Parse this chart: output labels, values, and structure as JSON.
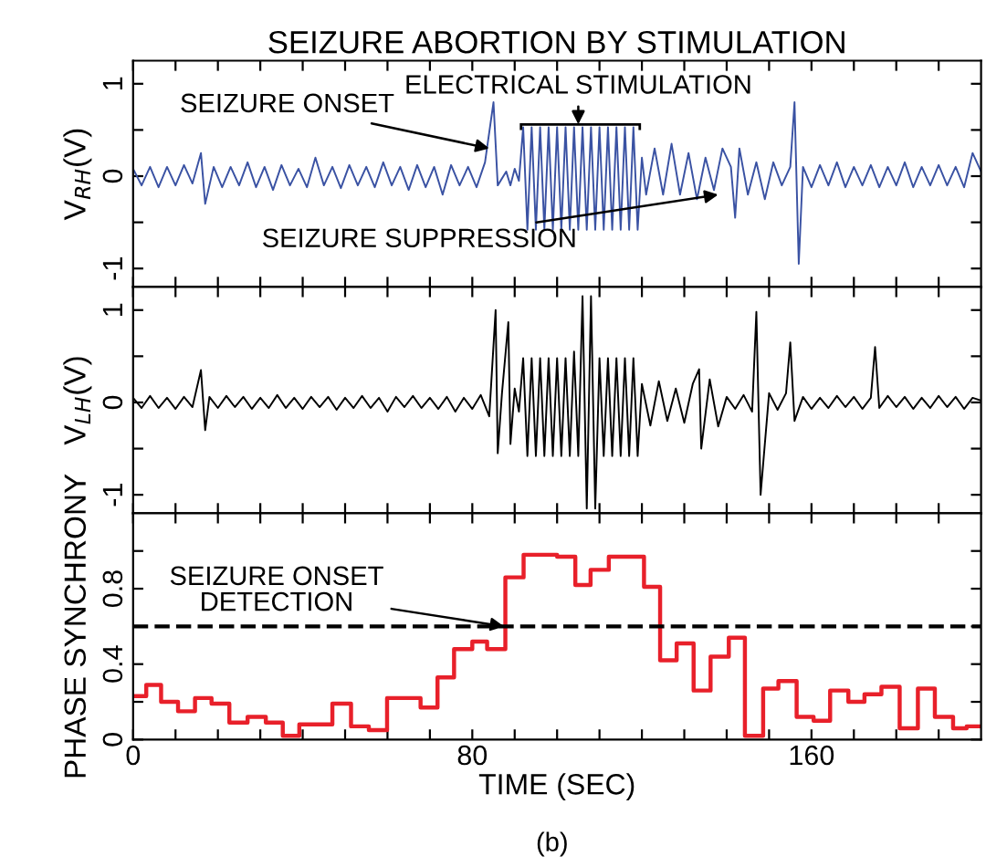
{
  "chart_data": [
    {
      "type": "line",
      "title": "SEIZURE ABORTION BY STIMULATION",
      "ylabel": "V$_{RH}$(V)",
      "xlim": [
        0,
        200
      ],
      "ylim": [
        -1.2,
        1.25
      ],
      "xticks": [
        {
          "value": 0,
          "label": null
        },
        {
          "value": 10,
          "label": null
        },
        {
          "value": 20,
          "label": null
        },
        {
          "value": 30,
          "label": null
        },
        {
          "value": 40,
          "label": null
        },
        {
          "value": 50,
          "label": null
        },
        {
          "value": 60,
          "label": null
        },
        {
          "value": 70,
          "label": null
        },
        {
          "value": 80,
          "label": null
        },
        {
          "value": 90,
          "label": null
        },
        {
          "value": 100,
          "label": null
        },
        {
          "value": 110,
          "label": null
        },
        {
          "value": 120,
          "label": null
        },
        {
          "value": 130,
          "label": null
        },
        {
          "value": 140,
          "label": null
        },
        {
          "value": 150,
          "label": null
        },
        {
          "value": 160,
          "label": null
        },
        {
          "value": 170,
          "label": null
        },
        {
          "value": 180,
          "label": null
        },
        {
          "value": 190,
          "label": null
        }
      ],
      "yticks": [
        -1,
        {
          "value": -0.5,
          "label": null
        },
        0,
        {
          "value": 0.5,
          "label": null
        },
        1
      ],
      "tick_labels": "y",
      "grid": false,
      "legend": false,
      "marker": "none",
      "line_style": "solid",
      "annotations": [
        {
          "text": "SEIZURE ONSET",
          "x": 84,
          "y": 0.3
        },
        {
          "text": "ELECTRICAL STIMULATION",
          "x": 105,
          "y": 0.56
        },
        {
          "text": "SEIZURE SUPPRESSION",
          "x": 138,
          "y": -0.2
        }
      ],
      "series": [
        {
          "color": "#3a52a3",
          "x": [
            0,
            2,
            4,
            6,
            8,
            10,
            12,
            14,
            16,
            17,
            19,
            21,
            23,
            25,
            27,
            29,
            31,
            33,
            35,
            37,
            39,
            41,
            43,
            45,
            47,
            49,
            51,
            53,
            55,
            57,
            59,
            61,
            63,
            65,
            67,
            69,
            71,
            73,
            75,
            77,
            79,
            81,
            83,
            85,
            86,
            88,
            89,
            90,
            91,
            92,
            93,
            94,
            95,
            96,
            97,
            98,
            99,
            100,
            101,
            102,
            103,
            104,
            105,
            106,
            107,
            108,
            109,
            110,
            111,
            112,
            113,
            114,
            115,
            116,
            117,
            118,
            119,
            120,
            121,
            123,
            125,
            127,
            129,
            131,
            133,
            135,
            137,
            139,
            141,
            142,
            143,
            145,
            147,
            149,
            151,
            153,
            155,
            156,
            157,
            158,
            160,
            162,
            164,
            166,
            168,
            170,
            172,
            174,
            176,
            178,
            180,
            182,
            184,
            186,
            188,
            190,
            192,
            194,
            196,
            198,
            200
          ],
          "values": [
            0.08,
            -0.1,
            0.1,
            -0.12,
            0.1,
            -0.1,
            0.12,
            -0.08,
            0.25,
            -0.3,
            0.1,
            -0.12,
            0.1,
            -0.1,
            0.15,
            -0.12,
            0.1,
            -0.15,
            0.12,
            -0.1,
            0.08,
            -0.12,
            0.2,
            -0.1,
            0.1,
            -0.13,
            0.12,
            -0.1,
            0.1,
            -0.12,
            0.15,
            -0.1,
            0.1,
            -0.15,
            0.12,
            -0.12,
            0.1,
            -0.2,
            0.12,
            -0.1,
            0.1,
            -0.12,
            0.15,
            0.8,
            -0.1,
            0.05,
            -0.1,
            0.08,
            -0.05,
            0.53,
            -0.58,
            0.53,
            -0.58,
            0.53,
            -0.58,
            0.53,
            -0.58,
            0.53,
            -0.58,
            0.53,
            -0.58,
            0.53,
            -0.58,
            0.53,
            -0.58,
            0.53,
            -0.58,
            0.53,
            -0.58,
            0.53,
            -0.58,
            0.53,
            -0.58,
            0.53,
            -0.58,
            0.53,
            -0.58,
            0.2,
            -0.2,
            0.3,
            -0.2,
            0.35,
            -0.2,
            0.25,
            -0.25,
            0.2,
            -0.15,
            0.3,
            0.1,
            -0.45,
            0.3,
            -0.2,
            0.15,
            -0.25,
            0.15,
            -0.1,
            0.1,
            0.8,
            -0.95,
            0.1,
            -0.12,
            0.12,
            -0.1,
            0.15,
            -0.12,
            0.1,
            -0.1,
            0.12,
            -0.12,
            0.1,
            -0.1,
            0.15,
            -0.12,
            0.1,
            -0.1,
            0.12,
            -0.1,
            0.1,
            -0.12,
            0.25,
            0.05
          ]
        }
      ]
    },
    {
      "type": "line",
      "ylabel": "V$_{LH}$(V)",
      "xlim": [
        0,
        200
      ],
      "ylim": [
        -1.2,
        1.25
      ],
      "xticks": [
        {
          "value": 0,
          "label": null
        },
        {
          "value": 10,
          "label": null
        },
        {
          "value": 20,
          "label": null
        },
        {
          "value": 30,
          "label": null
        },
        {
          "value": 40,
          "label": null
        },
        {
          "value": 50,
          "label": null
        },
        {
          "value": 60,
          "label": null
        },
        {
          "value": 70,
          "label": null
        },
        {
          "value": 80,
          "label": null
        },
        {
          "value": 90,
          "label": null
        },
        {
          "value": 100,
          "label": null
        },
        {
          "value": 110,
          "label": null
        },
        {
          "value": 120,
          "label": null
        },
        {
          "value": 130,
          "label": null
        },
        {
          "value": 140,
          "label": null
        },
        {
          "value": 150,
          "label": null
        },
        {
          "value": 160,
          "label": null
        },
        {
          "value": 170,
          "label": null
        },
        {
          "value": 180,
          "label": null
        },
        {
          "value": 190,
          "label": null
        }
      ],
      "yticks": [
        -1,
        {
          "value": -0.5,
          "label": null
        },
        0,
        {
          "value": 0.5,
          "label": null
        },
        1
      ],
      "tick_labels": "y",
      "grid": false,
      "legend": false,
      "marker": "none",
      "line_style": "solid",
      "series": [
        {
          "color": "#000000",
          "x": [
            0,
            2,
            4,
            6,
            8,
            10,
            12,
            14,
            16,
            17,
            18,
            20,
            22,
            24,
            26,
            28,
            30,
            32,
            34,
            36,
            38,
            40,
            42,
            44,
            46,
            48,
            50,
            52,
            54,
            56,
            58,
            60,
            62,
            64,
            66,
            68,
            70,
            72,
            74,
            76,
            78,
            80,
            82,
            84,
            85.5,
            86,
            87,
            88.5,
            89,
            90,
            91,
            92,
            93,
            94,
            95,
            96,
            97,
            98,
            99,
            100,
            101,
            102,
            103,
            104,
            105,
            106,
            107,
            108,
            109,
            110,
            111,
            112,
            113,
            114,
            115,
            116,
            117,
            118,
            119,
            120,
            122,
            124,
            126,
            128,
            130,
            132,
            133.5,
            134,
            136,
            138,
            140,
            142,
            144,
            146,
            147,
            148,
            150,
            152,
            154,
            155,
            156,
            158,
            160,
            162,
            164,
            166,
            168,
            170,
            172,
            174,
            175,
            176,
            178,
            180,
            182,
            184,
            186,
            188,
            190,
            192,
            194,
            196,
            198,
            200
          ],
          "values": [
            0.05,
            -0.06,
            0.07,
            -0.06,
            0.05,
            -0.07,
            0.06,
            -0.05,
            0.35,
            -0.3,
            0.06,
            -0.06,
            0.07,
            -0.05,
            0.06,
            -0.07,
            0.05,
            -0.06,
            0.08,
            -0.06,
            0.05,
            -0.07,
            0.06,
            -0.05,
            0.06,
            -0.08,
            0.05,
            -0.06,
            0.07,
            -0.06,
            0.05,
            -0.1,
            0.06,
            -0.05,
            0.07,
            -0.06,
            0.05,
            -0.07,
            0.06,
            -0.1,
            0.05,
            -0.07,
            0.08,
            -0.15,
            1.0,
            -0.55,
            0.1,
            0.87,
            -0.45,
            0.15,
            -0.1,
            0.48,
            -0.58,
            0.48,
            -0.58,
            0.48,
            -0.58,
            0.48,
            -0.58,
            0.48,
            -0.58,
            0.48,
            -0.58,
            0.55,
            -0.58,
            1.15,
            -1.15,
            1.15,
            -1.15,
            0.48,
            -0.58,
            0.48,
            -0.58,
            0.48,
            -0.58,
            0.48,
            -0.58,
            0.48,
            -0.58,
            0.2,
            -0.25,
            0.23,
            -0.2,
            0.15,
            -0.22,
            0.2,
            0.36,
            -0.5,
            0.25,
            -0.26,
            0.06,
            -0.07,
            0.08,
            -0.1,
            0.98,
            -1.0,
            0.1,
            -0.08,
            0.1,
            0.65,
            -0.2,
            0.06,
            -0.07,
            0.05,
            -0.06,
            0.07,
            -0.05,
            0.06,
            -0.07,
            0.05,
            0.6,
            -0.06,
            0.07,
            -0.05,
            0.06,
            -0.07,
            0.05,
            -0.06,
            0.07,
            -0.05,
            0.06,
            -0.07,
            0.05,
            0.02
          ]
        }
      ]
    },
    {
      "type": "step",
      "ylabel": "PHASE SYNCHRONY",
      "xlabel": "TIME (SEC)",
      "xlim": [
        0,
        200
      ],
      "ylim": [
        0,
        1.2
      ],
      "xticks": [
        0,
        {
          "value": 10,
          "label": null
        },
        {
          "value": 20,
          "label": null
        },
        {
          "value": 30,
          "label": null
        },
        {
          "value": 40,
          "label": null
        },
        {
          "value": 50,
          "label": null
        },
        {
          "value": 60,
          "label": null
        },
        {
          "value": 70,
          "label": null
        },
        80,
        {
          "value": 90,
          "label": null
        },
        {
          "value": 100,
          "label": null
        },
        {
          "value": 110,
          "label": null
        },
        {
          "value": 120,
          "label": null
        },
        {
          "value": 130,
          "label": null
        },
        {
          "value": 140,
          "label": null
        },
        {
          "value": 150,
          "label": null
        },
        160,
        {
          "value": 170,
          "label": null
        },
        {
          "value": 180,
          "label": null
        },
        {
          "value": 190,
          "label": null
        }
      ],
      "yticks": [
        0,
        {
          "value": 0.2,
          "label": null
        },
        0.4,
        {
          "value": 0.6,
          "label": null
        },
        0.8,
        {
          "value": 1.0,
          "label": null
        }
      ],
      "grid": false,
      "legend": false,
      "marker": "none",
      "line_style": "solid",
      "ref_lines": [
        {
          "axis": "y",
          "value": 0.6,
          "color": "#000000",
          "line_style": "dashed"
        }
      ],
      "annotations": [
        {
          "text": "SEIZURE ONSET\nDETECTION",
          "x": 87.5,
          "y": 0.6
        },
        "(b)"
      ],
      "series": [
        {
          "color": "#e8202a",
          "x": [
            0,
            3.1,
            6.6,
            10.6,
            14.6,
            18.5,
            22.7,
            27,
            31.3,
            35.3,
            39.2,
            47,
            51.4,
            55.6,
            59.9,
            67.8,
            71.8,
            75.7,
            80,
            83.5,
            87.8,
            92.1,
            100,
            104.3,
            107.9,
            112.2,
            120.5,
            124.3,
            128.2,
            132.2,
            136.2,
            140.5,
            144.3,
            148.6,
            152.2,
            156.5,
            160.5,
            164.4,
            168.7,
            172.5,
            176.5,
            180.8,
            185.1,
            189.1,
            193.4,
            196.6,
            200
          ],
          "values": [
            0.23,
            0.29,
            0.2,
            0.15,
            0.22,
            0.19,
            0.09,
            0.12,
            0.09,
            0.02,
            0.08,
            0.19,
            0.07,
            0.05,
            0.22,
            0.17,
            0.33,
            0.48,
            0.52,
            0.48,
            0.86,
            0.98,
            0.97,
            0.82,
            0.9,
            0.97,
            0.81,
            0.42,
            0.51,
            0.26,
            0.44,
            0.54,
            0.02,
            0.27,
            0.31,
            0.12,
            0.1,
            0.26,
            0.2,
            0.24,
            0.28,
            0.06,
            0.27,
            0.12,
            0.06,
            0.07,
            0.07
          ]
        }
      ]
    }
  ]
}
